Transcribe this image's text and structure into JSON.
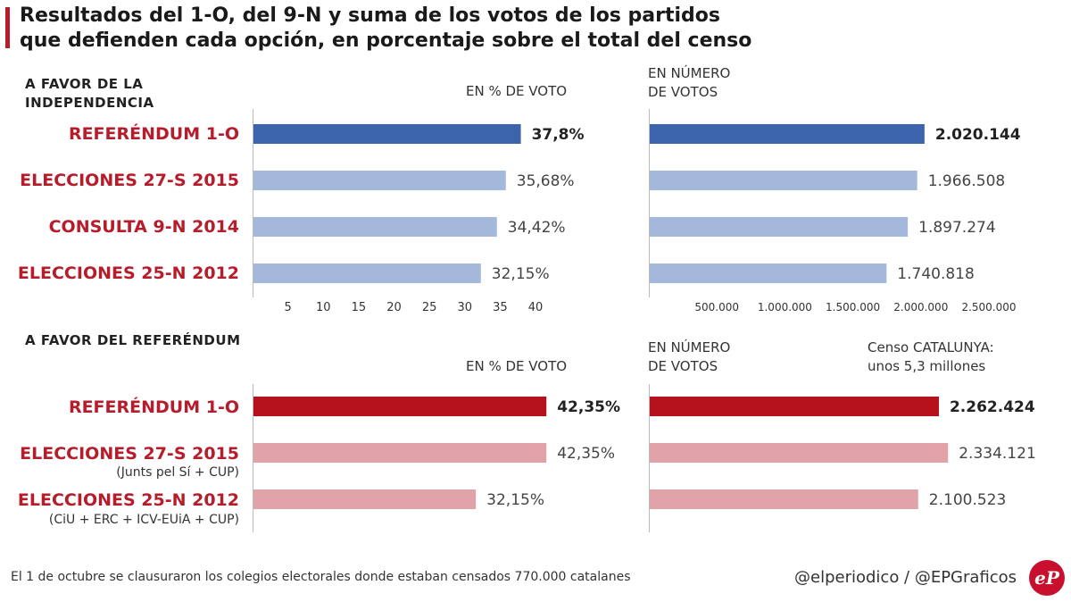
{
  "title": {
    "line1": "Resultados del 1-O, del 9-N y suma de los votos de los partidos",
    "line2": "que defienden cada opción, en porcentaje sobre el total del censo"
  },
  "top_section": {
    "heading_line1": "A FAVOR DE LA",
    "heading_line2": "INDEPENDENCIA",
    "pct_header": "EN % DE VOTO",
    "votes_header_line1": "EN NÚMERO",
    "votes_header_line2": "DE VOTOS"
  },
  "bottom_section": {
    "heading": "A FAVOR DEL REFERÉNDUM",
    "pct_header": "EN % DE VOTO",
    "votes_header_line1": "EN NÚMERO",
    "votes_header_line2": "DE VOTOS",
    "census_line1": "Censo CATALUNYA:",
    "census_line2": "unos 5,3 millones"
  },
  "colors": {
    "blue_dark": "#3c64ad",
    "blue_light": "#a3b8da",
    "red_dark": "#b5121b",
    "red_light": "#e2a3a8",
    "label_red": "#b71c2b"
  },
  "footer": {
    "note": "El 1 de octubre se clausuraron los colegios electorales donde estaban censados 770.000 catalanes",
    "credit": "@elperiodico / @EPGraficos",
    "logo": "eP"
  },
  "chart_data": [
    {
      "type": "bar",
      "title": "A FAVOR DE LA INDEPENDENCIA — EN % DE VOTO",
      "orientation": "horizontal",
      "categories": [
        "REFERÉNDUM 1-O",
        "ELECCIONES 27-S 2015",
        "CONSULTA 9-N 2014",
        "ELECCIONES 25-N 2012"
      ],
      "values": [
        37.8,
        35.68,
        34.42,
        32.15
      ],
      "value_labels": [
        "37,8%",
        "35,68%",
        "34,42%",
        "32,15%"
      ],
      "xlim": [
        0,
        40
      ],
      "ticks": [
        5,
        10,
        15,
        20,
        25,
        30,
        35,
        40
      ]
    },
    {
      "type": "bar",
      "title": "A FAVOR DE LA INDEPENDENCIA — EN NÚMERO DE VOTOS",
      "orientation": "horizontal",
      "categories": [
        "REFERÉNDUM 1-O",
        "ELECCIONES 27-S 2015",
        "CONSULTA 9-N 2014",
        "ELECCIONES 25-N 2012"
      ],
      "values": [
        2020144,
        1966508,
        1897274,
        1740818
      ],
      "value_labels": [
        "2.020.144",
        "1.966.508",
        "1.897.274",
        "1.740.818"
      ],
      "xlim": [
        0,
        2500000
      ],
      "ticks": [
        500000,
        1000000,
        1500000,
        2000000,
        2500000
      ],
      "tick_labels": [
        "500.000",
        "1.000.000",
        "1.500.000",
        "2.000.000",
        "2.500.000"
      ]
    },
    {
      "type": "bar",
      "title": "A FAVOR DEL REFERÉNDUM — EN % DE VOTO",
      "orientation": "horizontal",
      "categories": [
        "REFERÉNDUM 1-O",
        "ELECCIONES 27-S 2015",
        "ELECCIONES 25-N 2012"
      ],
      "sublabels": [
        "",
        "(Junts pel Sí + CUP)",
        "(CiU + ERC + ICV-EUiA + CUP)"
      ],
      "values": [
        42.35,
        42.35,
        32.15
      ],
      "value_labels": [
        "42,35%",
        "42,35%",
        "32,15%"
      ],
      "xlim": [
        0,
        40
      ]
    },
    {
      "type": "bar",
      "title": "A FAVOR DEL REFERÉNDUM — EN NÚMERO DE VOTOS",
      "orientation": "horizontal",
      "categories": [
        "REFERÉNDUM 1-O",
        "ELECCIONES 27-S 2015",
        "ELECCIONES 25-N 2012"
      ],
      "values": [
        2262424,
        2334121,
        2100523
      ],
      "value_labels": [
        "2.262.424",
        "2.334.121",
        "2.100.523"
      ],
      "xlim": [
        0,
        2500000
      ]
    }
  ]
}
